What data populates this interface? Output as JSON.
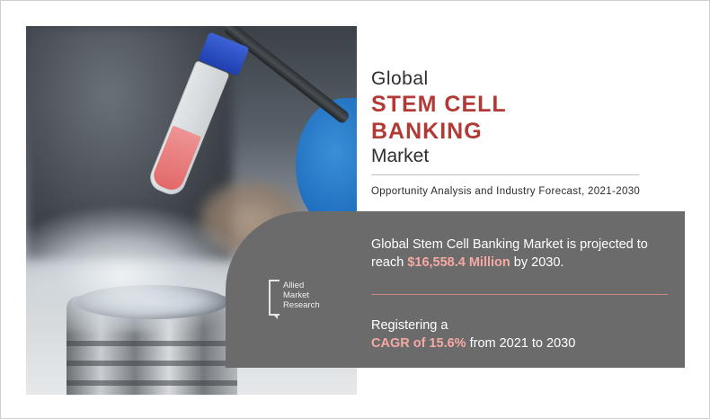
{
  "title": {
    "prefix": "Global",
    "main_line1": "STEM CELL",
    "main_line2": "BANKING",
    "suffix": "Market"
  },
  "subtitle": "Opportunity Analysis and Industry Forecast, 2021-2030",
  "logo": {
    "line1": "Allied",
    "line2": "Market",
    "line3": "Research"
  },
  "stat_projection": {
    "text_before": "Global Stem Cell Banking Market is projected to reach ",
    "value": "$16,558.4 Million",
    "text_after": " by 2030."
  },
  "stat_cagr": {
    "text_before": "Registering a",
    "value": "CAGR of 15.6%",
    "text_after": " from 2021 to 2030"
  },
  "colors": {
    "accent_title": "#b23a36",
    "highlight": "#f6a9a3",
    "panel": "#6b6b6b"
  },
  "image": {
    "description_icon": "stem-cell-vial-photo"
  }
}
